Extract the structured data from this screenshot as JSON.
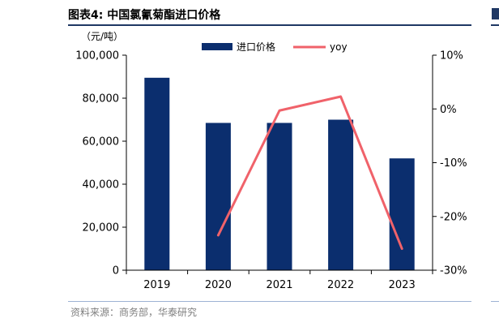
{
  "title": "图表4:  中国氯氰菊酯进口价格",
  "unit": "（元/吨）",
  "source": "资料来源：商务部，华泰研究",
  "colors": {
    "bar": "#0b2e6e",
    "line": "#f0626a",
    "axis": "#000000",
    "rule": "#1f3864"
  },
  "chart_data": {
    "type": "bar",
    "title": "中国氯氰菊酯进口价格",
    "categories": [
      "2019",
      "2020",
      "2021",
      "2022",
      "2023"
    ],
    "series": [
      {
        "name": "进口价格",
        "type": "bar",
        "axis": "left",
        "values": [
          89500,
          68500,
          68500,
          70000,
          52000
        ]
      },
      {
        "name": "yoy",
        "type": "line",
        "axis": "right",
        "values": [
          null,
          -23.5,
          -0.3,
          2.3,
          -26.0
        ]
      }
    ],
    "y_left": {
      "min": 0,
      "max": 100000,
      "ticks": [
        "0",
        "20,000",
        "40,000",
        "60,000",
        "80,000",
        "100,000"
      ],
      "tick_values": [
        0,
        20000,
        40000,
        60000,
        80000,
        100000
      ]
    },
    "y_right": {
      "min": -30,
      "max": 10,
      "ticks": [
        "-30%",
        "-20%",
        "-10%",
        "0%",
        "10%"
      ],
      "tick_values": [
        -30,
        -20,
        -10,
        0,
        10
      ]
    },
    "legend_position": "top-center",
    "grid": false
  }
}
